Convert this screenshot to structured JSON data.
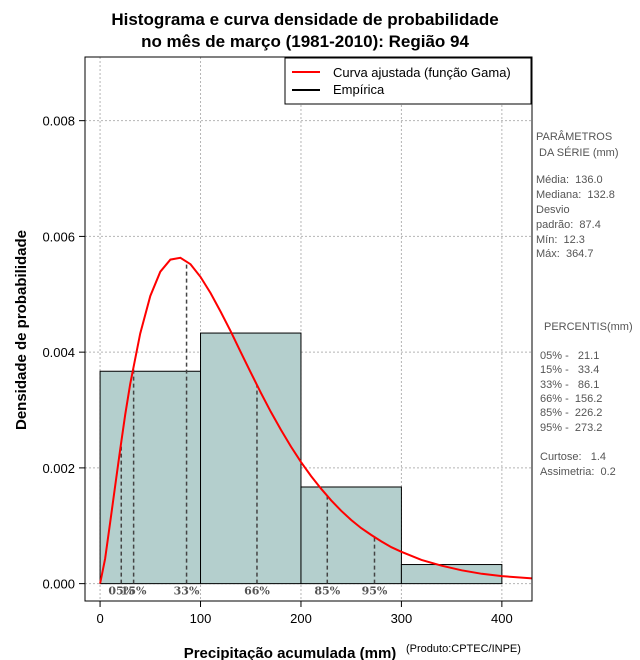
{
  "chart_data": {
    "type": "histogram",
    "title_lines": [
      "Histograma e curva densidade de probabilidade",
      "no mês de março (1981-2010): Região 94"
    ],
    "xlabel": "Precipitação acumulada (mm)",
    "ylabel": "Densidade de probabilidade",
    "credit": "(Produto:CPTEC/INPE)",
    "xlim": [
      -15,
      430
    ],
    "ylim": [
      -0.0003,
      0.0091
    ],
    "x_ticks": [
      0,
      100,
      200,
      300,
      400
    ],
    "x_tick_labels": [
      "0",
      "100",
      "200",
      "300",
      "400"
    ],
    "y_ticks": [
      0,
      0.002,
      0.004,
      0.006,
      0.008
    ],
    "y_tick_labels": [
      "0.000",
      "0.002",
      "0.004",
      "0.006",
      "0.008"
    ],
    "bins": [
      {
        "from": 0,
        "to": 100,
        "density": 0.00367
      },
      {
        "from": 100,
        "to": 200,
        "density": 0.00433
      },
      {
        "from": 200,
        "to": 300,
        "density": 0.00167
      },
      {
        "from": 300,
        "to": 400,
        "density": 0.00033
      }
    ],
    "gamma_curve": {
      "name": "Curva ajustada (função Gama)",
      "color": "#ff0000",
      "x": [
        0,
        5,
        10,
        15,
        20,
        25,
        30,
        40,
        50,
        60,
        70,
        80,
        90,
        100,
        110,
        120,
        130,
        140,
        150,
        160,
        170,
        180,
        190,
        200,
        210,
        220,
        230,
        240,
        250,
        260,
        270,
        280,
        290,
        300,
        320,
        340,
        360,
        380,
        400,
        430
      ],
      "y": [
        0,
        0.00043,
        0.00105,
        0.00168,
        0.00232,
        0.00292,
        0.00345,
        0.00432,
        0.00497,
        0.00539,
        0.0056,
        0.00563,
        0.00552,
        0.0053,
        0.00502,
        0.0047,
        0.00436,
        0.004,
        0.00365,
        0.0033,
        0.00297,
        0.00266,
        0.00237,
        0.0021,
        0.00186,
        0.00164,
        0.00144,
        0.00126,
        0.0011,
        0.00096,
        0.00084,
        0.00073,
        0.00063,
        0.00055,
        0.00041,
        0.00031,
        0.00023,
        0.00017,
        0.00013,
        9e-05
      ]
    },
    "empirical": {
      "name": "Empírica",
      "color": "#000000"
    },
    "bar_color": "#b4cfcd",
    "percentile_lines": [
      {
        "label": "05%",
        "x": 21.1
      },
      {
        "label": "15%",
        "x": 33.4
      },
      {
        "label": "33%",
        "x": 86.1
      },
      {
        "label": "66%",
        "x": 156.2
      },
      {
        "label": "85%",
        "x": 226.2
      },
      {
        "label": "95%",
        "x": 273.2
      }
    ]
  },
  "side_panel": {
    "params_title_1": "PARÂMETROS",
    "params_title_2": " DA SÉRIE (mm)",
    "media": "Média:  136.0",
    "mediana": "Mediana:  132.8",
    "desvio": "Desvio",
    "padrao": "padrão:  87.4",
    "min": "Mín:  12.3",
    "max": "Máx:  364.7",
    "percentis_title": "PERCENTIS(mm)",
    "p05": "05% -   21.1",
    "p15": "15% -   33.4",
    "p33": "33% -   86.1",
    "p66": "66% -  156.2",
    "p85": "85% -  226.2",
    "p95": "95% -  273.2",
    "curtose": "Curtose:   1.4",
    "assimetria": "Assimetria:  0.2"
  }
}
